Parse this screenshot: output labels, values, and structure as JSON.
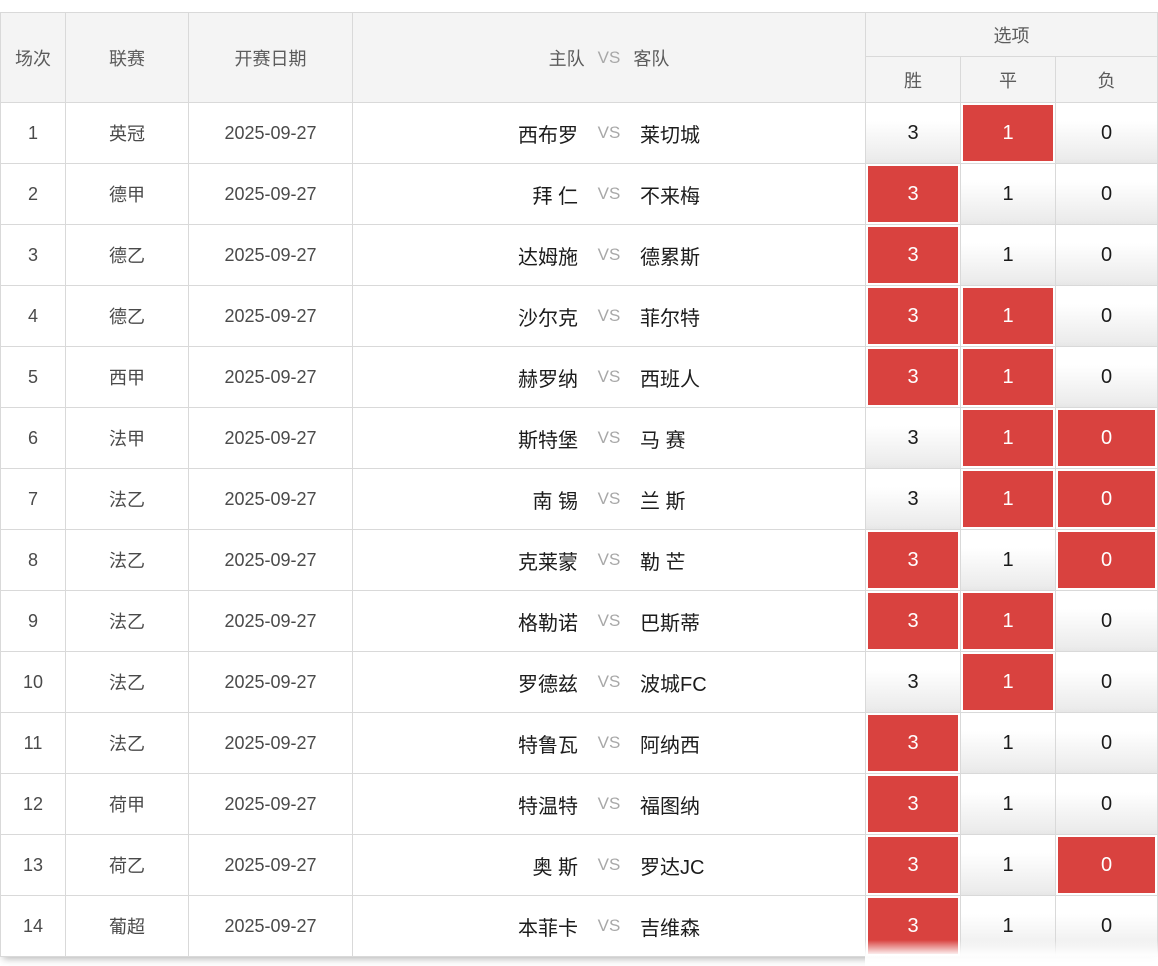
{
  "header": {
    "match_no": "场次",
    "league": "联赛",
    "date": "开赛日期",
    "home": "主队",
    "vs": "VS",
    "away": "客队",
    "options_group": "选项",
    "win": "胜",
    "draw": "平",
    "lose": "负"
  },
  "colors": {
    "selected_bg": "#d9423f",
    "selected_text": "#ffffff",
    "header_bg": "#f4f4f4",
    "grid_border": "#d9d9d9"
  },
  "rows": [
    {
      "no": "1",
      "league": "英冠",
      "date": "2025-09-27",
      "home": "西布罗",
      "away": "莱切城",
      "options": [
        {
          "name": "win",
          "label": "3",
          "selected": false
        },
        {
          "name": "draw",
          "label": "1",
          "selected": true
        },
        {
          "name": "lose",
          "label": "0",
          "selected": false
        }
      ]
    },
    {
      "no": "2",
      "league": "德甲",
      "date": "2025-09-27",
      "home": "拜 仁",
      "away": "不来梅",
      "options": [
        {
          "name": "win",
          "label": "3",
          "selected": true
        },
        {
          "name": "draw",
          "label": "1",
          "selected": false
        },
        {
          "name": "lose",
          "label": "0",
          "selected": false
        }
      ]
    },
    {
      "no": "3",
      "league": "德乙",
      "date": "2025-09-27",
      "home": "达姆施",
      "away": "德累斯",
      "options": [
        {
          "name": "win",
          "label": "3",
          "selected": true
        },
        {
          "name": "draw",
          "label": "1",
          "selected": false
        },
        {
          "name": "lose",
          "label": "0",
          "selected": false
        }
      ]
    },
    {
      "no": "4",
      "league": "德乙",
      "date": "2025-09-27",
      "home": "沙尔克",
      "away": "菲尔特",
      "options": [
        {
          "name": "win",
          "label": "3",
          "selected": true
        },
        {
          "name": "draw",
          "label": "1",
          "selected": true
        },
        {
          "name": "lose",
          "label": "0",
          "selected": false
        }
      ]
    },
    {
      "no": "5",
      "league": "西甲",
      "date": "2025-09-27",
      "home": "赫罗纳",
      "away": "西班人",
      "options": [
        {
          "name": "win",
          "label": "3",
          "selected": true
        },
        {
          "name": "draw",
          "label": "1",
          "selected": true
        },
        {
          "name": "lose",
          "label": "0",
          "selected": false
        }
      ]
    },
    {
      "no": "6",
      "league": "法甲",
      "date": "2025-09-27",
      "home": "斯特堡",
      "away": "马 赛",
      "options": [
        {
          "name": "win",
          "label": "3",
          "selected": false
        },
        {
          "name": "draw",
          "label": "1",
          "selected": true
        },
        {
          "name": "lose",
          "label": "0",
          "selected": true
        }
      ]
    },
    {
      "no": "7",
      "league": "法乙",
      "date": "2025-09-27",
      "home": "南 锡",
      "away": "兰 斯",
      "options": [
        {
          "name": "win",
          "label": "3",
          "selected": false
        },
        {
          "name": "draw",
          "label": "1",
          "selected": true
        },
        {
          "name": "lose",
          "label": "0",
          "selected": true
        }
      ]
    },
    {
      "no": "8",
      "league": "法乙",
      "date": "2025-09-27",
      "home": "克莱蒙",
      "away": "勒 芒",
      "options": [
        {
          "name": "win",
          "label": "3",
          "selected": true
        },
        {
          "name": "draw",
          "label": "1",
          "selected": false
        },
        {
          "name": "lose",
          "label": "0",
          "selected": true
        }
      ]
    },
    {
      "no": "9",
      "league": "法乙",
      "date": "2025-09-27",
      "home": "格勒诺",
      "away": "巴斯蒂",
      "options": [
        {
          "name": "win",
          "label": "3",
          "selected": true
        },
        {
          "name": "draw",
          "label": "1",
          "selected": true
        },
        {
          "name": "lose",
          "label": "0",
          "selected": false
        }
      ]
    },
    {
      "no": "10",
      "league": "法乙",
      "date": "2025-09-27",
      "home": "罗德兹",
      "away": "波城FC",
      "options": [
        {
          "name": "win",
          "label": "3",
          "selected": false
        },
        {
          "name": "draw",
          "label": "1",
          "selected": true
        },
        {
          "name": "lose",
          "label": "0",
          "selected": false
        }
      ]
    },
    {
      "no": "11",
      "league": "法乙",
      "date": "2025-09-27",
      "home": "特鲁瓦",
      "away": "阿纳西",
      "options": [
        {
          "name": "win",
          "label": "3",
          "selected": true
        },
        {
          "name": "draw",
          "label": "1",
          "selected": false
        },
        {
          "name": "lose",
          "label": "0",
          "selected": false
        }
      ]
    },
    {
      "no": "12",
      "league": "荷甲",
      "date": "2025-09-27",
      "home": "特温特",
      "away": "福图纳",
      "options": [
        {
          "name": "win",
          "label": "3",
          "selected": true
        },
        {
          "name": "draw",
          "label": "1",
          "selected": false
        },
        {
          "name": "lose",
          "label": "0",
          "selected": false
        }
      ]
    },
    {
      "no": "13",
      "league": "荷乙",
      "date": "2025-09-27",
      "home": "奥 斯",
      "away": "罗达JC",
      "options": [
        {
          "name": "win",
          "label": "3",
          "selected": true
        },
        {
          "name": "draw",
          "label": "1",
          "selected": false
        },
        {
          "name": "lose",
          "label": "0",
          "selected": true
        }
      ]
    },
    {
      "no": "14",
      "league": "葡超",
      "date": "2025-09-27",
      "home": "本菲卡",
      "away": "吉维森",
      "options": [
        {
          "name": "win",
          "label": "3",
          "selected": true
        },
        {
          "name": "draw",
          "label": "1",
          "selected": false
        },
        {
          "name": "lose",
          "label": "0",
          "selected": false
        }
      ]
    }
  ]
}
